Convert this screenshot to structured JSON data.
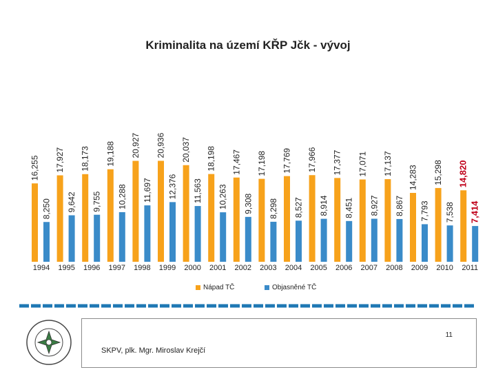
{
  "chart_data": {
    "type": "bar",
    "title": "Kriminalita na území KŘP Jčk - vývoj",
    "categories": [
      "1994",
      "1995",
      "1996",
      "1997",
      "1998",
      "1999",
      "2000",
      "2001",
      "2002",
      "2003",
      "2004",
      "2005",
      "2006",
      "2007",
      "2008",
      "2009",
      "2010",
      "2011"
    ],
    "series": [
      {
        "name": "Nápad TČ",
        "color": "#f7a21b",
        "values": [
          16255,
          17927,
          18173,
          19188,
          20927,
          20936,
          20037,
          18198,
          17467,
          17198,
          17769,
          17966,
          17377,
          17071,
          17137,
          14283,
          15298,
          14820
        ],
        "labels": [
          "16,255",
          "17,927",
          "18,173",
          "19,188",
          "20,927",
          "20,936",
          "20,037",
          "18,198",
          "17,467",
          "17,198",
          "17,769",
          "17,966",
          "17,377",
          "17,071",
          "17,137",
          "14,283",
          "15,298",
          "14,820"
        ]
      },
      {
        "name": "Objasněné TČ",
        "color": "#3a8bc9",
        "values": [
          8250,
          9642,
          9755,
          10288,
          11697,
          12376,
          11563,
          10263,
          9308,
          8298,
          8527,
          8914,
          8451,
          8927,
          8867,
          7793,
          7538,
          7414
        ],
        "labels": [
          "8,250",
          "9,642",
          "9,755",
          "10,288",
          "11,697",
          "12,376",
          "11,563",
          "10,263",
          "9,308",
          "8,298",
          "8,527",
          "8,914",
          "8,451",
          "8,927",
          "8,867",
          "7,793",
          "7,538",
          "7,414"
        ]
      }
    ],
    "highlight_category": "2011",
    "highlight_label_color": "#c0001a",
    "xlabel": "",
    "ylabel": "",
    "grid": false,
    "legend": "bottom"
  },
  "legend": {
    "nápad": "Nápad TČ",
    "objasnene": "Objasněné TČ"
  },
  "footer": {
    "page_number": "11",
    "author": "SKPV, plk. Mgr. Miroslav Krejčí"
  },
  "emblem": {
    "label": "POLICIE ČESKÉ REPUBLIKY"
  },
  "colors": {
    "orange": "#f7a21b",
    "blue": "#3a8bc9",
    "deco_blue": "#1f78b4"
  }
}
